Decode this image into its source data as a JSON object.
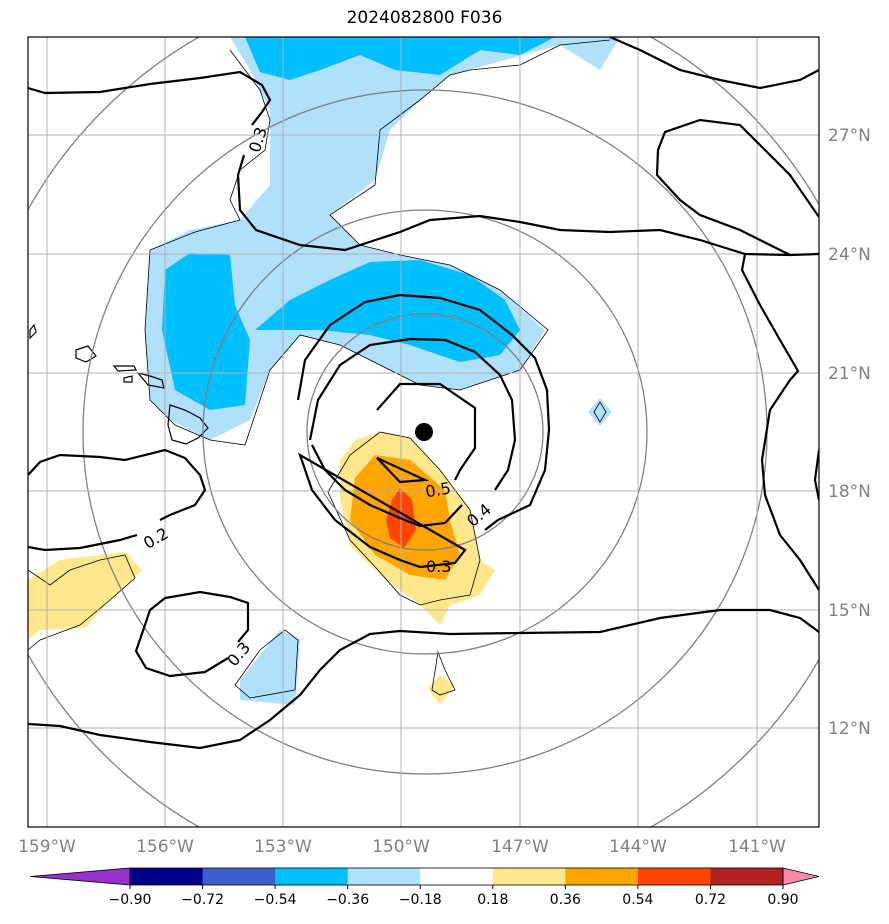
{
  "title": "2024082800 F036",
  "map": {
    "lon_ticks": [
      "159°W",
      "156°W",
      "153°W",
      "150°W",
      "147°W",
      "144°W",
      "141°W"
    ],
    "lon_values": [
      -159,
      -156,
      -153,
      -150,
      -147,
      -144,
      -141
    ],
    "lat_ticks": [
      "27°N",
      "24°N",
      "21°N",
      "18°N",
      "15°N",
      "12°N"
    ],
    "lat_values": [
      27,
      24,
      21,
      18,
      15,
      12
    ],
    "extent": {
      "lon_min": -159.5,
      "lon_max": -139.5,
      "lat_min": 9.7,
      "lat_max": 29.5
    },
    "storm_center": {
      "lon": -149.4,
      "lat": 19.5
    },
    "contour_labels": [
      "0.3",
      "0.2",
      "0.3",
      "0.3",
      "0.4",
      "0.5"
    ]
  },
  "colorbar": {
    "labels": [
      "−0.90",
      "−0.72",
      "−0.54",
      "−0.36",
      "−0.18",
      "0.18",
      "0.36",
      "0.54",
      "0.72",
      "0.90"
    ],
    "colors": [
      "#9932cc",
      "#00008b",
      "#3a5fcd",
      "#00bfff",
      "#b0e0fa",
      "#ffffff",
      "#ffe88c",
      "#ffa500",
      "#ff4500",
      "#b22222",
      "#ff88aa"
    ]
  }
}
